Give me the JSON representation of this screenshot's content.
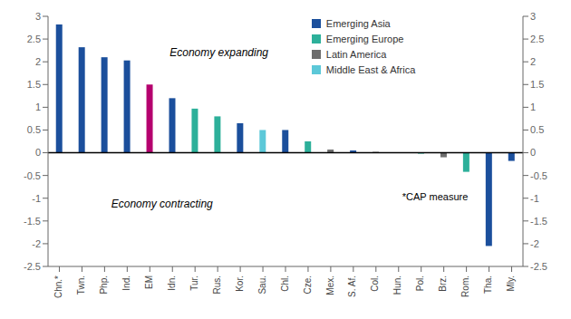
{
  "chart_data": {
    "type": "bar",
    "categories": [
      "Chn.*",
      "Twn.",
      "Php.",
      "Ind.",
      "EM",
      "Idn.",
      "Tur.",
      "Rus.",
      "Kor.",
      "Sau.",
      "Chl.",
      "Cze.",
      "Mex.",
      "S. Af.",
      "Col.",
      "Hun.",
      "Pol.",
      "Brz.",
      "Rom.",
      "Tha.",
      "Mly."
    ],
    "values": [
      2.82,
      2.32,
      2.1,
      2.03,
      1.5,
      1.2,
      0.97,
      0.8,
      0.65,
      0.5,
      0.5,
      0.25,
      0.07,
      0.05,
      0.02,
      0.01,
      -0.02,
      -0.1,
      -0.42,
      -2.05,
      -0.18
    ],
    "colors": [
      "#1b4f9c",
      "#1b4f9c",
      "#1b4f9c",
      "#1b4f9c",
      "#b5006e",
      "#1b4f9c",
      "#2db09a",
      "#2db09a",
      "#1b4f9c",
      "#5cc8d8",
      "#1b4f9c",
      "#2db09a",
      "#6d6d6d",
      "#1b4f9c",
      "#6d6d6d",
      "#2db09a",
      "#2db09a",
      "#6d6d6d",
      "#2db09a",
      "#1b4f9c",
      "#1b4f9c"
    ],
    "ylim": [
      -2.5,
      3.0
    ],
    "yticks": [
      -2.5,
      -2,
      -1.5,
      -1,
      -0.5,
      0,
      0.5,
      1,
      1.5,
      2,
      2.5,
      3
    ],
    "grid": false,
    "legend": "upper right",
    "legend_items": [
      {
        "label": "Emerging Asia",
        "color": "#1b4f9c"
      },
      {
        "label": "Emerging Europe",
        "color": "#2db09a"
      },
      {
        "label": "Latin America",
        "color": "#6d6d6d"
      },
      {
        "label": "Middle East & Africa",
        "color": "#5cc8d8"
      }
    ],
    "annotations": [
      "Economy expanding",
      "Economy contracting",
      "*CAP measure"
    ]
  }
}
